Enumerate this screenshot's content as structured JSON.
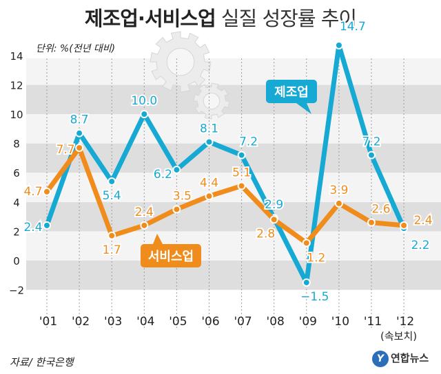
{
  "header": {
    "title_bold": "제조업·서비스업",
    "title_light": "실질 성장률 추이"
  },
  "unit_label": "단위: %(전년 대비)",
  "source": "자료/ 한국은행",
  "footnote": "(속보치)",
  "logo_text": "연합뉴스",
  "colors": {
    "manufacturing": "#16a9d4",
    "services": "#f08c1c",
    "band_dark": "#dedede",
    "band_light": "#f4f4f4",
    "text": "#222222"
  },
  "icons": [
    "gear-icon",
    "gear-icon"
  ],
  "chart_data": {
    "type": "line",
    "categories": [
      "'01",
      "'02",
      "'03",
      "'04",
      "'05",
      "'06",
      "'07",
      "'08",
      "'09",
      "'10",
      "'11",
      "'12"
    ],
    "yticks": [
      "14",
      "12",
      "10",
      "8",
      "6",
      "4",
      "2",
      "0",
      "−2"
    ],
    "ylim": [
      -2,
      14
    ],
    "grid": true,
    "series": [
      {
        "name": "제조업",
        "values": [
          2.4,
          8.7,
          5.4,
          10.0,
          6.2,
          8.1,
          7.2,
          2.9,
          -1.5,
          14.7,
          7.2,
          2.2
        ],
        "labels": [
          "2.4",
          "8.7",
          "5.4",
          "10.0",
          "6.2",
          "8.1",
          "7.2",
          "2.9",
          "−1.5",
          "14.7",
          "7.2",
          "2.2"
        ]
      },
      {
        "name": "서비스업",
        "values": [
          4.7,
          7.7,
          1.7,
          2.4,
          3.5,
          4.4,
          5.1,
          2.8,
          1.2,
          3.9,
          2.6,
          2.4
        ],
        "labels": [
          "4.7",
          "7.7",
          "1.7",
          "2.4",
          "3.5",
          "4.4",
          "5.1",
          "2.8",
          "1.2",
          "3.9",
          "2.6",
          "2.4"
        ]
      }
    ]
  }
}
